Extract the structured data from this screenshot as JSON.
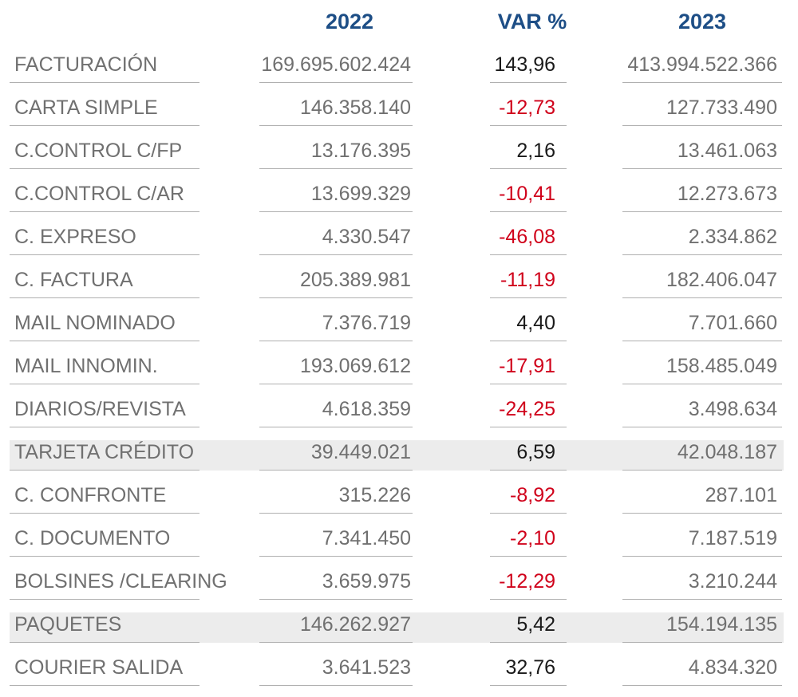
{
  "headers": {
    "col_2022": "2022",
    "col_var": "VAR %",
    "col_2023": "2023"
  },
  "rows": [
    {
      "label": "FACTURACIÓN",
      "v2022": "169.695.602.424",
      "var": "143,96",
      "v2023": "413.994.522.366",
      "negative": false,
      "highlight": false
    },
    {
      "label": "CARTA SIMPLE",
      "v2022": "146.358.140",
      "var": "-12,73",
      "v2023": "127.733.490",
      "negative": true,
      "highlight": false
    },
    {
      "label": "C.CONTROL C/FP",
      "v2022": "13.176.395",
      "var": "2,16",
      "v2023": "13.461.063",
      "negative": false,
      "highlight": false
    },
    {
      "label": "C.CONTROL C/AR",
      "v2022": "13.699.329",
      "var": "-10,41",
      "v2023": "12.273.673",
      "negative": true,
      "highlight": false
    },
    {
      "label": "C. EXPRESO",
      "v2022": "4.330.547",
      "var": "-46,08",
      "v2023": "2.334.862",
      "negative": true,
      "highlight": false
    },
    {
      "label": "C. FACTURA",
      "v2022": "205.389.981",
      "var": "-11,19",
      "v2023": "182.406.047",
      "negative": true,
      "highlight": false
    },
    {
      "label": "MAIL NOMINADO",
      "v2022": "7.376.719",
      "var": "4,40",
      "v2023": "7.701.660",
      "negative": false,
      "highlight": false
    },
    {
      "label": "MAIL INNOMIN.",
      "v2022": "193.069.612",
      "var": "-17,91",
      "v2023": "158.485.049",
      "negative": true,
      "highlight": false
    },
    {
      "label": "DIARIOS/REVISTA",
      "v2022": "4.618.359",
      "var": "-24,25",
      "v2023": "3.498.634",
      "negative": true,
      "highlight": false
    },
    {
      "label": "TARJETA CRÉDITO",
      "v2022": "39.449.021",
      "var": "6,59",
      "v2023": "42.048.187",
      "negative": false,
      "highlight": true
    },
    {
      "label": "C. CONFRONTE",
      "v2022": "315.226",
      "var": "-8,92",
      "v2023": "287.101",
      "negative": true,
      "highlight": false
    },
    {
      "label": "C. DOCUMENTO",
      "v2022": "7.341.450",
      "var": "-2,10",
      "v2023": "7.187.519",
      "negative": true,
      "highlight": false
    },
    {
      "label": "BOLSINES /CLEARING",
      "v2022": "3.659.975",
      "var": "-12,29",
      "v2023": "3.210.244",
      "negative": true,
      "highlight": false
    },
    {
      "label": "PAQUETES",
      "v2022": "146.262.927",
      "var": "5,42",
      "v2023": "154.194.135",
      "negative": false,
      "highlight": true
    },
    {
      "label": "COURIER SALIDA",
      "v2022": "3.641.523",
      "var": "32,76",
      "v2023": "4.834.320",
      "negative": false,
      "highlight": false
    }
  ]
}
